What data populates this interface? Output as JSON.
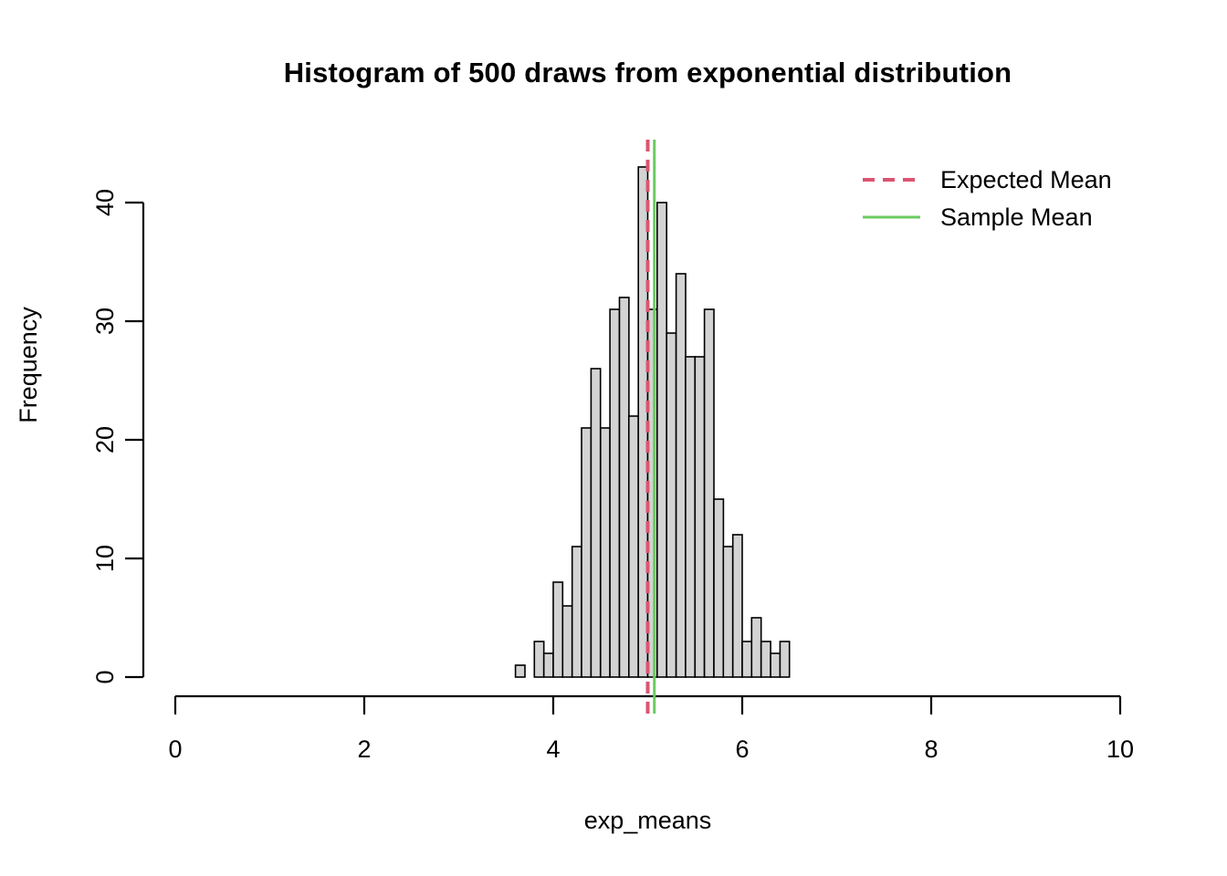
{
  "chart": {
    "title": "Histogram of 500 draws from exponential distribution",
    "xlabel": "exp_means",
    "ylabel": "Frequency"
  },
  "legend": {
    "items": [
      {
        "label": "Expected Mean",
        "color": "#DC5472",
        "style": "dashed"
      },
      {
        "label": "Sample Mean",
        "color": "#6BCB5F",
        "style": "solid"
      }
    ]
  },
  "chart_data": {
    "type": "bar",
    "subtype": "histogram",
    "title": "Histogram of 500 draws from exponential distribution",
    "xlabel": "exp_means",
    "ylabel": "Frequency",
    "n_total": 500,
    "bin_start": 3.6,
    "bin_width": 0.1,
    "bin_edges": [
      3.6,
      3.7,
      3.8,
      3.9,
      4.0,
      4.1,
      4.2,
      4.3,
      4.4,
      4.5,
      4.6,
      4.7,
      4.8,
      4.9,
      5.0,
      5.1,
      5.2,
      5.3,
      5.4,
      5.5,
      5.6,
      5.7,
      5.8,
      5.9,
      6.0,
      6.1,
      6.2,
      6.3,
      6.4,
      6.5
    ],
    "counts": [
      1,
      0,
      3,
      2,
      8,
      6,
      11,
      21,
      26,
      21,
      31,
      32,
      22,
      43,
      31,
      40,
      29,
      34,
      27,
      27,
      31,
      15,
      11,
      12,
      3,
      5,
      3,
      2,
      3
    ],
    "xlim": [
      0,
      10
    ],
    "ylim": [
      0,
      40
    ],
    "x_ticks": [
      0,
      2,
      4,
      6,
      8,
      10
    ],
    "y_ticks": [
      0,
      10,
      20,
      30,
      40
    ],
    "grid": false,
    "legend_position": "top-right",
    "bar_fill": "#D3D3D3",
    "bar_stroke": "#000000",
    "vlines": [
      {
        "name": "Expected Mean",
        "x": 5.0,
        "color": "#DC5472",
        "dash": true
      },
      {
        "name": "Sample Mean",
        "x": 5.07,
        "color": "#6BCB5F",
        "dash": false
      }
    ]
  }
}
